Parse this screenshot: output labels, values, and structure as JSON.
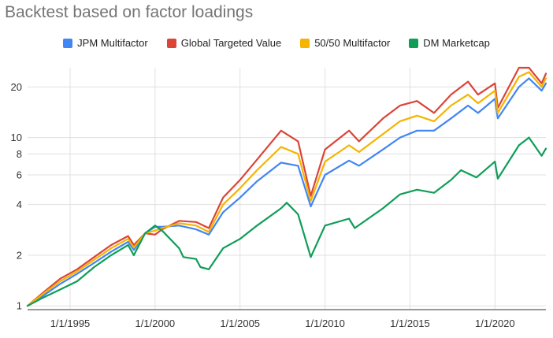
{
  "chart_data": {
    "type": "line",
    "title": "Backtest based on factor loadings",
    "xlabel": "",
    "ylabel": "",
    "y_scale": "log",
    "ylim": [
      0.95,
      26
    ],
    "xlim": [
      "1992-07-01",
      "2022-12-31"
    ],
    "grid": true,
    "legend_position": "top",
    "y_ticks": [
      1,
      2,
      4,
      6,
      8,
      10,
      20
    ],
    "y_tick_labels": [
      "1",
      "2",
      "4",
      "6",
      "8",
      "10",
      "20"
    ],
    "x_ticks": [
      "1995-01-01",
      "2000-01-01",
      "2005-01-01",
      "2010-01-01",
      "2015-01-01",
      "2020-01-01"
    ],
    "x_tick_labels": [
      "1/1/1995",
      "1/1/2000",
      "1/1/2005",
      "1/1/2010",
      "1/1/2015",
      "1/1/2020"
    ],
    "series": [
      {
        "name": "JPM Multifactor",
        "color": "#4285F4",
        "points": [
          [
            "1992-07-01",
            1.0
          ],
          [
            "1993-06-01",
            1.15
          ],
          [
            "1994-06-01",
            1.35
          ],
          [
            "1995-06-01",
            1.55
          ],
          [
            "1996-06-01",
            1.8
          ],
          [
            "1997-06-01",
            2.1
          ],
          [
            "1998-06-01",
            2.4
          ],
          [
            "1998-10-01",
            2.15
          ],
          [
            "1999-06-01",
            2.7
          ],
          [
            "2000-01-01",
            2.95
          ],
          [
            "2000-06-01",
            2.95
          ],
          [
            "2001-06-01",
            3.0
          ],
          [
            "2002-06-01",
            2.85
          ],
          [
            "2003-03-01",
            2.65
          ],
          [
            "2004-01-01",
            3.6
          ],
          [
            "2005-01-01",
            4.4
          ],
          [
            "2006-01-01",
            5.5
          ],
          [
            "2007-06-01",
            7.1
          ],
          [
            "2008-06-01",
            6.8
          ],
          [
            "2009-03-01",
            3.9
          ],
          [
            "2010-01-01",
            6.0
          ],
          [
            "2011-06-01",
            7.3
          ],
          [
            "2012-01-01",
            6.8
          ],
          [
            "2013-06-01",
            8.5
          ],
          [
            "2014-06-01",
            10.0
          ],
          [
            "2015-06-01",
            11.0
          ],
          [
            "2016-06-01",
            11.0
          ],
          [
            "2017-06-01",
            13.0
          ],
          [
            "2018-06-01",
            15.5
          ],
          [
            "2019-01-01",
            14.0
          ],
          [
            "2020-01-01",
            17.0
          ],
          [
            "2020-03-01",
            13.0
          ],
          [
            "2021-06-01",
            20.0
          ],
          [
            "2022-01-01",
            22.5
          ],
          [
            "2022-10-01",
            19.0
          ],
          [
            "2022-12-31",
            21.0
          ]
        ]
      },
      {
        "name": "Global Targeted Value",
        "color": "#DB4437",
        "points": [
          [
            "1992-07-01",
            1.0
          ],
          [
            "1993-06-01",
            1.2
          ],
          [
            "1994-06-01",
            1.45
          ],
          [
            "1995-06-01",
            1.65
          ],
          [
            "1996-06-01",
            1.95
          ],
          [
            "1997-06-01",
            2.3
          ],
          [
            "1998-06-01",
            2.6
          ],
          [
            "1998-10-01",
            2.3
          ],
          [
            "1999-06-01",
            2.7
          ],
          [
            "2000-01-01",
            2.65
          ],
          [
            "2000-06-01",
            2.85
          ],
          [
            "2001-06-01",
            3.2
          ],
          [
            "2002-06-01",
            3.15
          ],
          [
            "2003-03-01",
            2.9
          ],
          [
            "2004-01-01",
            4.4
          ],
          [
            "2005-01-01",
            5.6
          ],
          [
            "2006-01-01",
            7.4
          ],
          [
            "2007-06-01",
            11.0
          ],
          [
            "2008-06-01",
            9.5
          ],
          [
            "2009-03-01",
            4.5
          ],
          [
            "2010-01-01",
            8.5
          ],
          [
            "2011-06-01",
            11.0
          ],
          [
            "2012-01-01",
            9.5
          ],
          [
            "2013-06-01",
            13.0
          ],
          [
            "2014-06-01",
            15.5
          ],
          [
            "2015-06-01",
            16.5
          ],
          [
            "2016-06-01",
            14.0
          ],
          [
            "2017-06-01",
            18.0
          ],
          [
            "2018-06-01",
            21.5
          ],
          [
            "2019-01-01",
            18.0
          ],
          [
            "2020-01-01",
            21.0
          ],
          [
            "2020-03-01",
            15.0
          ],
          [
            "2021-06-01",
            26.0
          ],
          [
            "2022-01-01",
            26.0
          ],
          [
            "2022-10-01",
            21.0
          ],
          [
            "2022-12-31",
            24.0
          ]
        ]
      },
      {
        "name": "50/50 Multifactor",
        "color": "#F4B400",
        "points": [
          [
            "1992-07-01",
            1.0
          ],
          [
            "1993-06-01",
            1.18
          ],
          [
            "1994-06-01",
            1.4
          ],
          [
            "1995-06-01",
            1.6
          ],
          [
            "1996-06-01",
            1.88
          ],
          [
            "1997-06-01",
            2.2
          ],
          [
            "1998-06-01",
            2.5
          ],
          [
            "1998-10-01",
            2.22
          ],
          [
            "1999-06-01",
            2.7
          ],
          [
            "2000-01-01",
            2.8
          ],
          [
            "2000-06-01",
            2.9
          ],
          [
            "2001-06-01",
            3.1
          ],
          [
            "2002-06-01",
            3.0
          ],
          [
            "2003-03-01",
            2.75
          ],
          [
            "2004-01-01",
            4.0
          ],
          [
            "2005-01-01",
            5.0
          ],
          [
            "2006-01-01",
            6.4
          ],
          [
            "2007-06-01",
            8.8
          ],
          [
            "2008-06-01",
            8.0
          ],
          [
            "2009-03-01",
            4.2
          ],
          [
            "2010-01-01",
            7.2
          ],
          [
            "2011-06-01",
            9.0
          ],
          [
            "2012-01-01",
            8.2
          ],
          [
            "2013-06-01",
            10.5
          ],
          [
            "2014-06-01",
            12.5
          ],
          [
            "2015-06-01",
            13.5
          ],
          [
            "2016-06-01",
            12.5
          ],
          [
            "2017-06-01",
            15.5
          ],
          [
            "2018-06-01",
            18.0
          ],
          [
            "2019-01-01",
            16.0
          ],
          [
            "2020-01-01",
            19.0
          ],
          [
            "2020-03-01",
            14.0
          ],
          [
            "2021-06-01",
            23.0
          ],
          [
            "2022-01-01",
            24.5
          ],
          [
            "2022-10-01",
            20.0
          ],
          [
            "2022-12-31",
            22.5
          ]
        ]
      },
      {
        "name": "DM Marketcap",
        "color": "#0F9D58",
        "points": [
          [
            "1992-07-01",
            1.0
          ],
          [
            "1993-06-01",
            1.12
          ],
          [
            "1994-06-01",
            1.25
          ],
          [
            "1995-06-01",
            1.4
          ],
          [
            "1996-06-01",
            1.7
          ],
          [
            "1997-06-01",
            2.0
          ],
          [
            "1998-06-01",
            2.3
          ],
          [
            "1998-10-01",
            2.0
          ],
          [
            "1999-06-01",
            2.7
          ],
          [
            "2000-01-01",
            3.0
          ],
          [
            "2000-06-01",
            2.8
          ],
          [
            "2001-06-01",
            2.2
          ],
          [
            "2001-09-01",
            1.95
          ],
          [
            "2002-06-01",
            1.9
          ],
          [
            "2002-09-01",
            1.7
          ],
          [
            "2003-03-01",
            1.65
          ],
          [
            "2004-01-01",
            2.2
          ],
          [
            "2005-01-01",
            2.5
          ],
          [
            "2006-01-01",
            3.0
          ],
          [
            "2007-06-01",
            3.8
          ],
          [
            "2007-10-01",
            4.1
          ],
          [
            "2008-06-01",
            3.5
          ],
          [
            "2009-03-01",
            1.95
          ],
          [
            "2010-01-01",
            3.0
          ],
          [
            "2011-06-01",
            3.3
          ],
          [
            "2011-10-01",
            2.9
          ],
          [
            "2013-06-01",
            3.8
          ],
          [
            "2014-06-01",
            4.6
          ],
          [
            "2015-06-01",
            4.9
          ],
          [
            "2016-06-01",
            4.7
          ],
          [
            "2017-06-01",
            5.6
          ],
          [
            "2018-01-01",
            6.4
          ],
          [
            "2018-12-01",
            5.8
          ],
          [
            "2020-01-01",
            7.2
          ],
          [
            "2020-03-01",
            5.7
          ],
          [
            "2021-06-01",
            9.0
          ],
          [
            "2022-01-01",
            10.0
          ],
          [
            "2022-10-01",
            7.8
          ],
          [
            "2022-12-31",
            8.6
          ]
        ]
      }
    ]
  }
}
